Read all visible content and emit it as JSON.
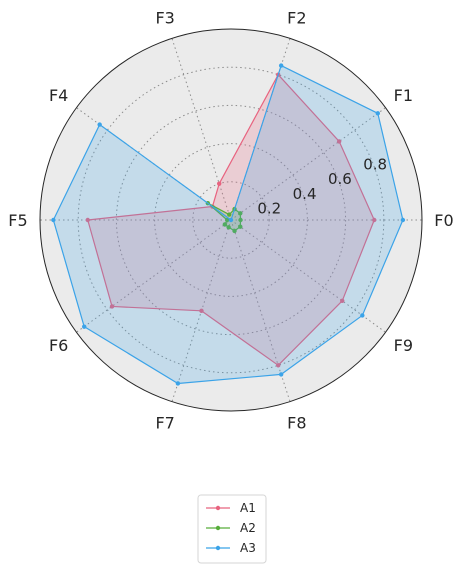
{
  "chart_data": {
    "type": "radar",
    "categories": [
      "F0",
      "F1",
      "F2",
      "F3",
      "F4",
      "F5",
      "F6",
      "F7",
      "F8",
      "F9"
    ],
    "radial_ticks": [
      "0.2",
      "0.4",
      "0.6",
      "0.8"
    ],
    "rlim": [
      0,
      1.0
    ],
    "grid": true,
    "legend_position": "bottom-center",
    "series": [
      {
        "name": "A1",
        "color": "#e8637f",
        "values": [
          0.75,
          0.7,
          0.8,
          0.2,
          0.12,
          0.75,
          0.77,
          0.5,
          0.8,
          0.72
        ]
      },
      {
        "name": "A2",
        "color": "#57ad3b",
        "values": [
          0.05,
          0.06,
          0.06,
          0.03,
          0.15,
          0.02,
          0.04,
          0.04,
          0.06,
          0.06
        ]
      },
      {
        "name": "A3",
        "color": "#3ba3e8",
        "values": [
          0.9,
          0.95,
          0.85,
          0.0,
          0.85,
          0.93,
          0.95,
          0.9,
          0.85,
          0.85
        ]
      }
    ]
  }
}
